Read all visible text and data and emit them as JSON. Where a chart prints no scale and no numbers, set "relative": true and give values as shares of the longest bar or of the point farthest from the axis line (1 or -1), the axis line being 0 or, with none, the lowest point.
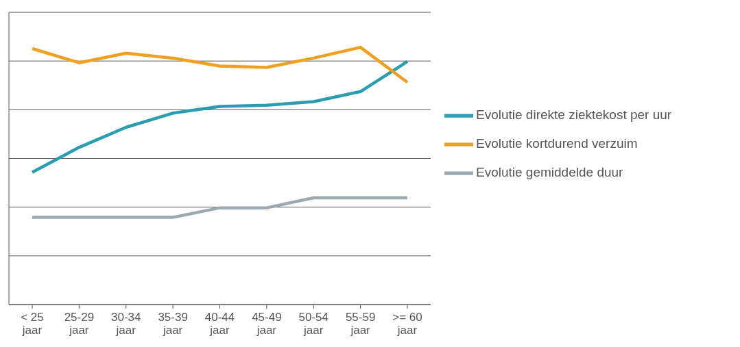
{
  "chart_data": {
    "type": "line",
    "relative": true,
    "grid": "y",
    "legend": "right",
    "marker": "none",
    "line_style": "solid",
    "categories": [
      "< 25 jaar",
      "25-29 jaar",
      "30-34 jaar",
      "35-39 jaar",
      "40-44 jaar",
      "45-49 jaar",
      "50-54 jaar",
      "55-59 jaar",
      ">= 60 jaar"
    ],
    "series": [
      {
        "name": "Evolutie direkte ziektekost per uur",
        "color": "#2a9db0",
        "values": [
          0.514,
          0.611,
          0.689,
          0.744,
          0.77,
          0.775,
          0.789,
          0.828,
          0.945
        ]
      },
      {
        "name": "Evolutie kortdurend verzuim",
        "color": "#f0a020",
        "values": [
          0.995,
          0.94,
          0.977,
          0.958,
          0.927,
          0.922,
          0.958,
          1,
          0.864
        ]
      },
      {
        "name": "Evolutie gemiddelde duur",
        "color": "#9aaab0",
        "values": [
          0.339,
          0.339,
          0.339,
          0.339,
          0.376,
          0.376,
          0.415,
          0.415,
          0.415
        ]
      }
    ]
  }
}
